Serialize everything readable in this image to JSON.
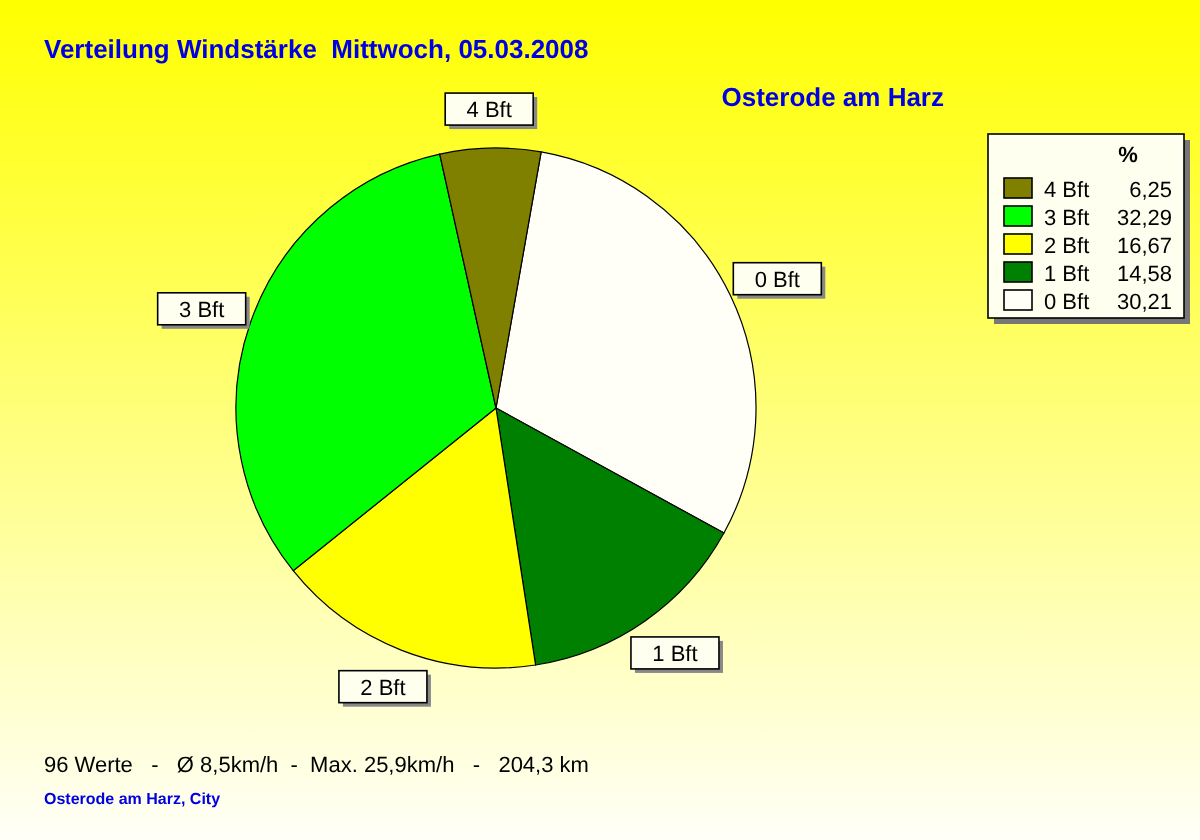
{
  "chart_data": {
    "type": "pie",
    "title": "Verteilung Windstärke  Mittwoch, 05.03.2008",
    "subtitle": "Osterode am Harz",
    "legend_title": "%",
    "categories": [
      "0 Bft",
      "1 Bft",
      "2 Bft",
      "3 Bft",
      "4 Bft"
    ],
    "values": [
      30.21,
      14.58,
      16.67,
      32.29,
      6.25
    ],
    "value_labels": [
      "30,21",
      "14,58",
      "16,67",
      "32,29",
      "6,25"
    ],
    "colors": [
      "#fffff8",
      "#008000",
      "#ffff00",
      "#00ff00",
      "#808000"
    ],
    "legend": "top right",
    "annotations": [
      "96 Werte   -   Ø 8,5km/h  -  Max. 25,9km/h   -   204,3 km",
      "Osterode am Harz, City"
    ]
  }
}
